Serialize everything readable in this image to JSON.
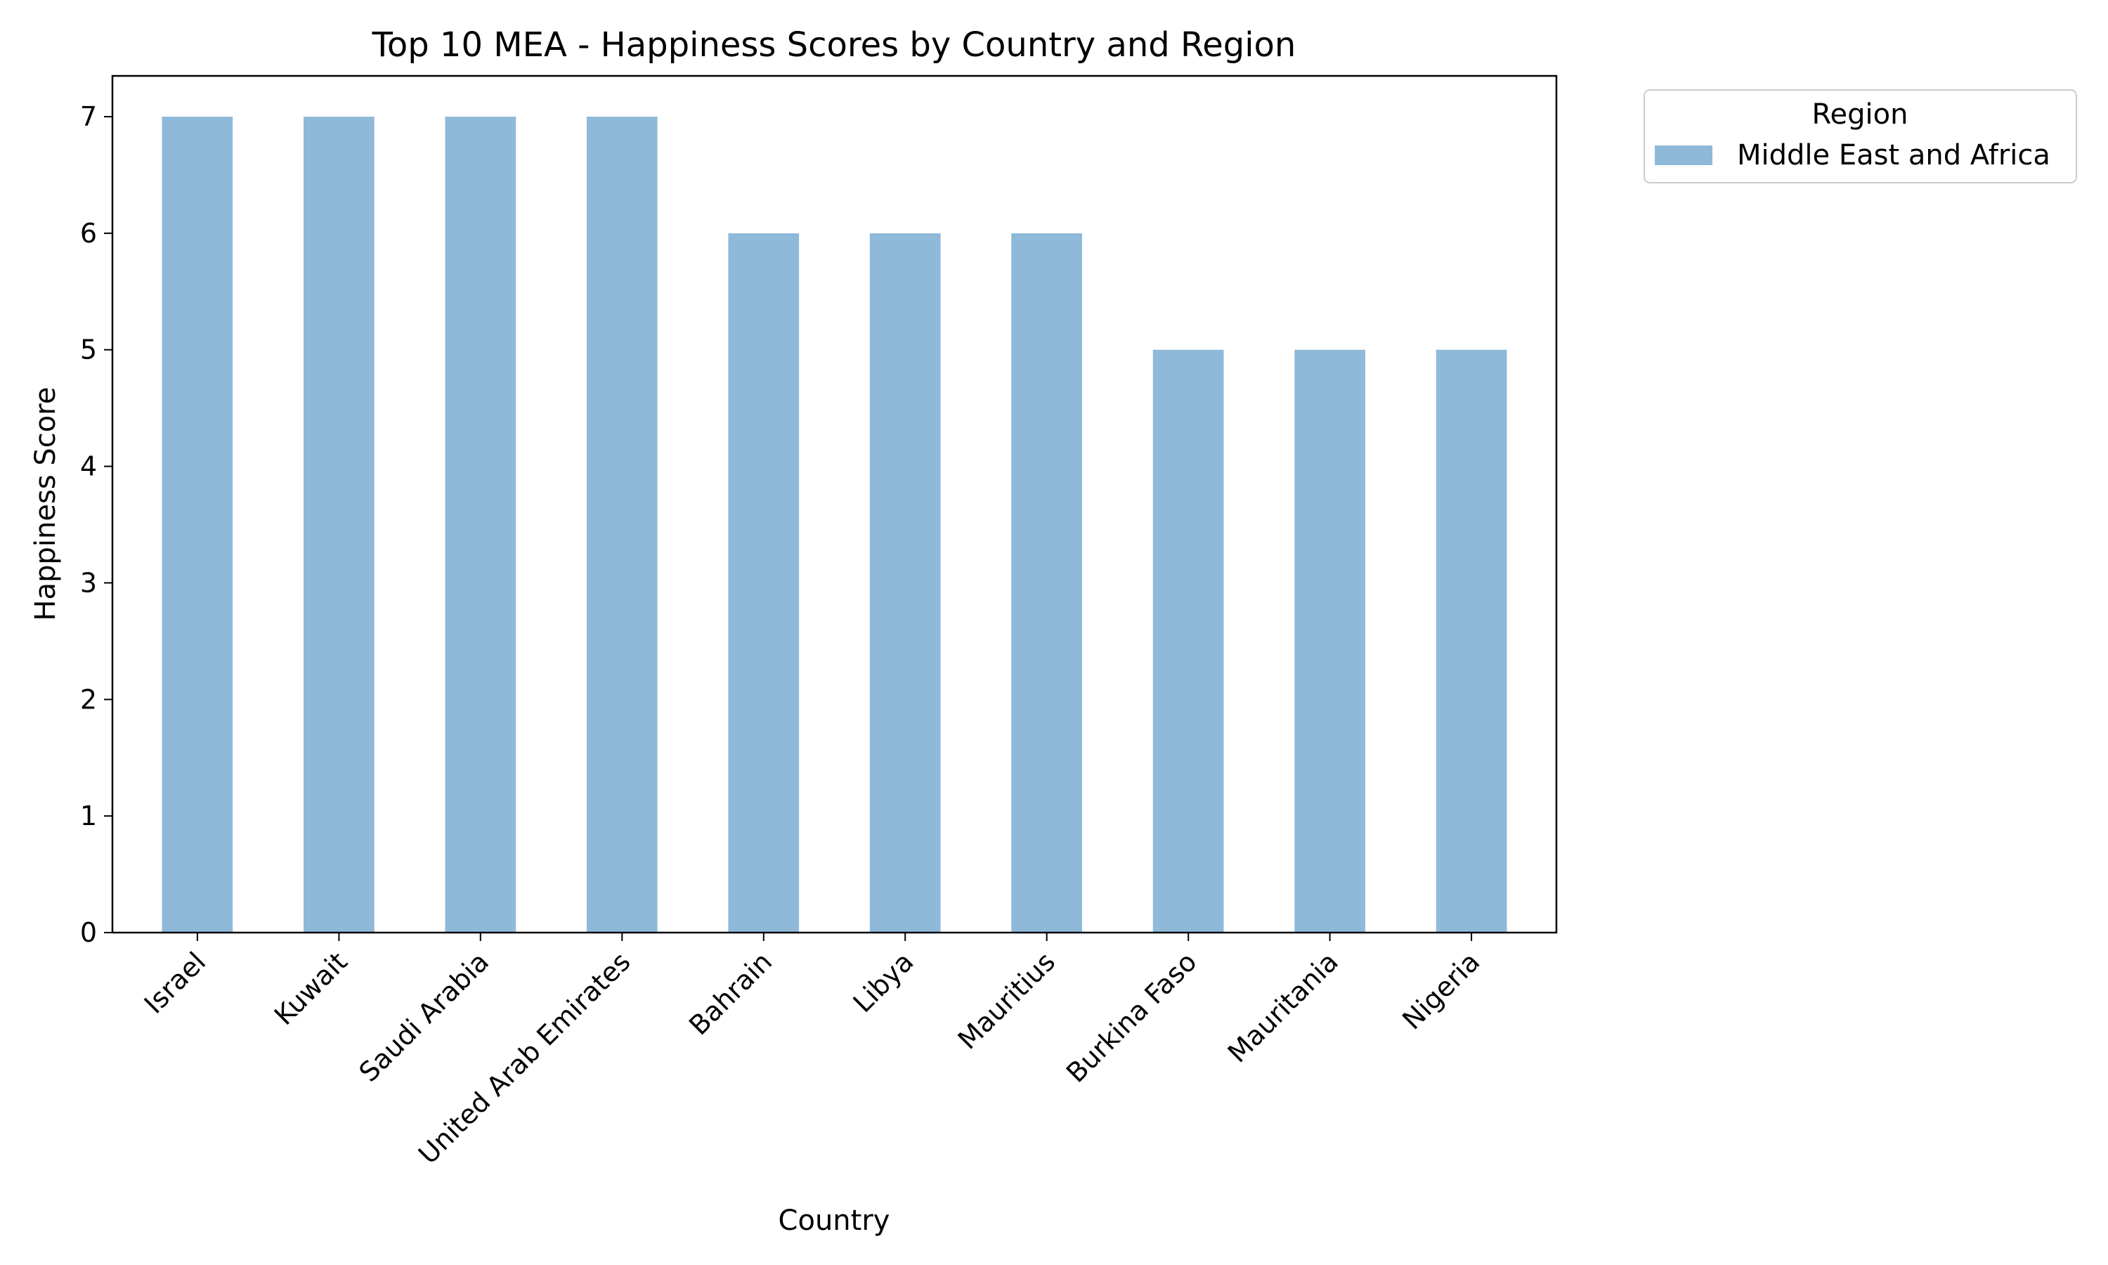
{
  "chart_data": {
    "type": "bar",
    "title": "Top 10 MEA - Happiness Scores by Country and Region",
    "xlabel": "Country",
    "ylabel": "Happiness Score",
    "categories": [
      "Israel",
      "Kuwait",
      "Saudi Arabia",
      "United Arab Emirates",
      "Bahrain",
      "Libya",
      "Mauritius",
      "Burkina Faso",
      "Mauritania",
      "Nigeria"
    ],
    "series": [
      {
        "name": "Middle East and Africa",
        "values": [
          7,
          7,
          7,
          7,
          6,
          6,
          6,
          5,
          5,
          5
        ],
        "color": "#8fb9d9"
      }
    ],
    "yticks": [
      "0",
      "1",
      "2",
      "3",
      "4",
      "5",
      "6",
      "7"
    ],
    "ylim": [
      0,
      7.35
    ],
    "grid": false,
    "legend": {
      "title": "Region",
      "placement": "outside-top-right"
    }
  }
}
